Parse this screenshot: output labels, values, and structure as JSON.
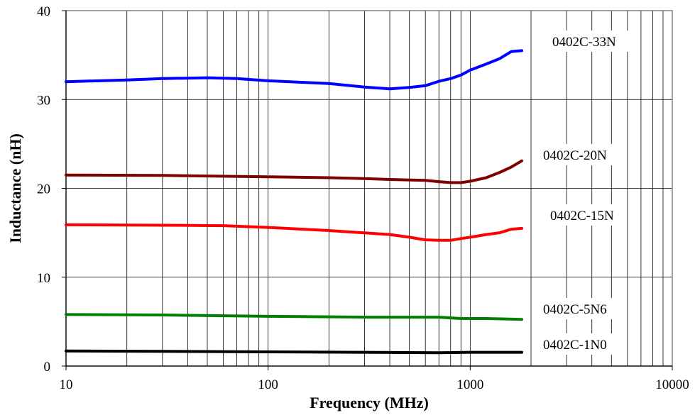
{
  "chart_data": {
    "type": "line",
    "title": "",
    "xlabel": "Frequency (MHz)",
    "ylabel": "Inductance (nH)",
    "xscale": "log",
    "xlim": [
      10,
      10000
    ],
    "ylim": [
      0,
      40
    ],
    "xticks": [
      10,
      100,
      1000,
      10000
    ],
    "xtick_labels": [
      "10",
      "100",
      "1000",
      "10000"
    ],
    "yticks": [
      0,
      10,
      20,
      30,
      40
    ],
    "ytick_labels": [
      "0",
      "10",
      "20",
      "30",
      "40"
    ],
    "grid": true,
    "legend": "none",
    "series": [
      {
        "name": "0402C-33N",
        "color": "#0000ff",
        "x": [
          10,
          20,
          30,
          50,
          70,
          100,
          200,
          300,
          400,
          500,
          600,
          700,
          800,
          900,
          1000,
          1200,
          1400,
          1600,
          1800
        ],
        "y": [
          32.0,
          32.2,
          32.35,
          32.45,
          32.35,
          32.1,
          31.8,
          31.4,
          31.2,
          31.35,
          31.55,
          32.05,
          32.35,
          32.75,
          33.3,
          34.0,
          34.6,
          35.4,
          35.5
        ]
      },
      {
        "name": "0402C-20N",
        "color": "#800000",
        "x": [
          10,
          30,
          100,
          200,
          300,
          400,
          600,
          700,
          800,
          900,
          1000,
          1200,
          1400,
          1600,
          1800
        ],
        "y": [
          21.5,
          21.45,
          21.3,
          21.2,
          21.1,
          21.0,
          20.9,
          20.75,
          20.65,
          20.65,
          20.8,
          21.2,
          21.8,
          22.4,
          23.1
        ]
      },
      {
        "name": "0402C-15N",
        "color": "#ff0000",
        "x": [
          10,
          30,
          60,
          100,
          200,
          400,
          500,
          600,
          700,
          800,
          900,
          1000,
          1200,
          1400,
          1600,
          1800
        ],
        "y": [
          15.9,
          15.85,
          15.8,
          15.6,
          15.25,
          14.8,
          14.5,
          14.2,
          14.15,
          14.15,
          14.35,
          14.5,
          14.8,
          15.0,
          15.4,
          15.5
        ]
      },
      {
        "name": "0402C-5N6",
        "color": "#008000",
        "x": [
          10,
          30,
          100,
          300,
          700,
          900,
          1200,
          1500,
          1800
        ],
        "y": [
          5.8,
          5.75,
          5.6,
          5.5,
          5.5,
          5.35,
          5.35,
          5.3,
          5.25
        ]
      },
      {
        "name": "0402C-1N0",
        "color": "#000000",
        "x": [
          10,
          30,
          100,
          300,
          700,
          1000,
          1400,
          1800
        ],
        "y": [
          1.7,
          1.65,
          1.6,
          1.55,
          1.5,
          1.55,
          1.55,
          1.55
        ]
      }
    ]
  }
}
